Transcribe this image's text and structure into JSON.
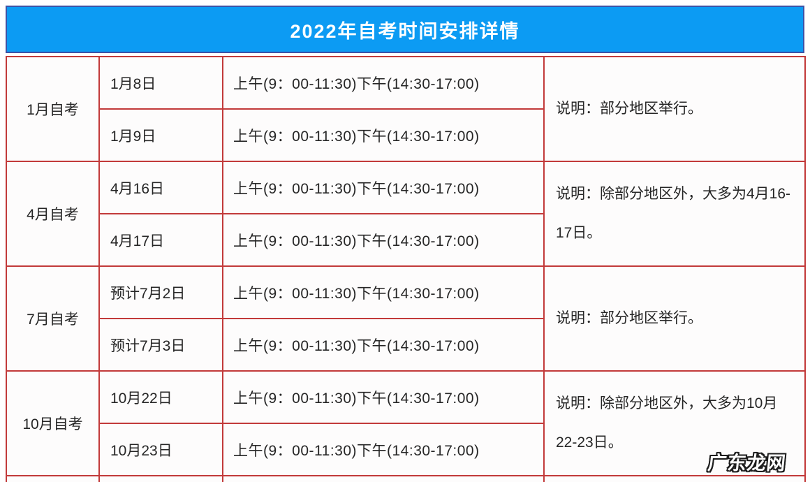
{
  "header": {
    "title": "2022年自考时间安排详情",
    "bg_color": "#0c9bf3",
    "border_color": "#3d53a6",
    "text_color": "#ffffff"
  },
  "table": {
    "border_color": "#c23a3a",
    "sections": [
      {
        "month": "1月自考",
        "rows": [
          {
            "date": "1月8日",
            "time": "上午(9：00-11:30)下午(14:30-17:00)"
          },
          {
            "date": "1月9日",
            "time": "上午(9：00-11:30)下午(14:30-17:00)"
          }
        ],
        "note": "说明：部分地区举行。"
      },
      {
        "month": "4月自考",
        "rows": [
          {
            "date": "4月16日",
            "time": "上午(9：00-11:30)下午(14:30-17:00)"
          },
          {
            "date": "4月17日",
            "time": "上午(9：00-11:30)下午(14:30-17:00)"
          }
        ],
        "note": "说明：除部分地区外，大多为4月16-17日。"
      },
      {
        "month": "7月自考",
        "rows": [
          {
            "date": "预计7月2日",
            "time": "上午(9：00-11:30)下午(14:30-17:00)"
          },
          {
            "date": "预计7月3日",
            "time": "上午(9：00-11:30)下午(14:30-17:00)"
          }
        ],
        "note": "说明：部分地区举行。"
      },
      {
        "month": "10月自考",
        "rows": [
          {
            "date": "10月22日",
            "time": "上午(9：00-11:30)下午(14:30-17:00)"
          },
          {
            "date": "10月23日",
            "time": "上午(9：00-11:30)下午(14:30-17:00)"
          }
        ],
        "note": "说明：除部分地区外，大多为10月22-23日。"
      }
    ]
  },
  "watermark": {
    "text": "广东龙网"
  }
}
